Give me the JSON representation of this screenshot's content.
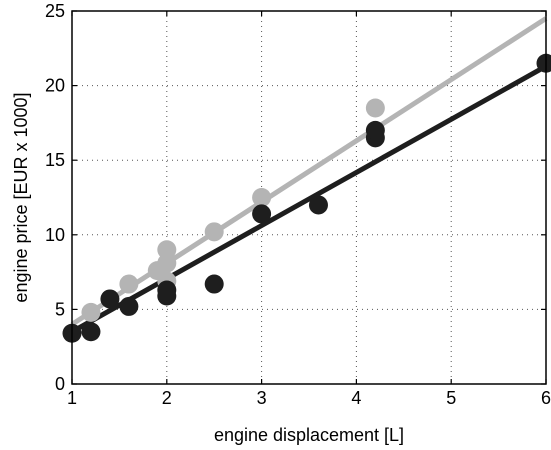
{
  "chart_data": {
    "type": "scatter",
    "xlabel": "engine displacement [L]",
    "ylabel": "engine price [EUR x 1000]",
    "xlim": [
      1,
      6
    ],
    "ylim": [
      0,
      25
    ],
    "xticks": [
      1,
      2,
      3,
      4,
      5,
      6
    ],
    "yticks": [
      0,
      5,
      10,
      15,
      20,
      25
    ],
    "grid": true,
    "series": [
      {
        "color": "#b4b4b4",
        "points": [
          {
            "x": 1.2,
            "y": 4.8
          },
          {
            "x": 1.6,
            "y": 6.7
          },
          {
            "x": 1.9,
            "y": 7.6
          },
          {
            "x": 2.0,
            "y": 6.9
          },
          {
            "x": 2.0,
            "y": 8.1
          },
          {
            "x": 2.0,
            "y": 9.0
          },
          {
            "x": 2.5,
            "y": 10.2
          },
          {
            "x": 3.0,
            "y": 12.5
          },
          {
            "x": 4.2,
            "y": 18.5
          }
        ],
        "fit": {
          "x": [
            1,
            6
          ],
          "y": [
            4.0,
            24.5
          ]
        }
      },
      {
        "color": "#1e1e1e",
        "points": [
          {
            "x": 1.0,
            "y": 3.4
          },
          {
            "x": 1.2,
            "y": 3.5
          },
          {
            "x": 1.4,
            "y": 5.7
          },
          {
            "x": 1.6,
            "y": 5.2
          },
          {
            "x": 2.0,
            "y": 5.9
          },
          {
            "x": 2.0,
            "y": 6.3
          },
          {
            "x": 2.5,
            "y": 6.7
          },
          {
            "x": 3.0,
            "y": 11.4
          },
          {
            "x": 3.6,
            "y": 12.0
          },
          {
            "x": 4.2,
            "y": 16.5
          },
          {
            "x": 4.2,
            "y": 17.0
          },
          {
            "x": 6.0,
            "y": 21.5
          }
        ],
        "fit": {
          "x": [
            1,
            6
          ],
          "y": [
            3.5,
            21.3
          ]
        }
      }
    ]
  }
}
